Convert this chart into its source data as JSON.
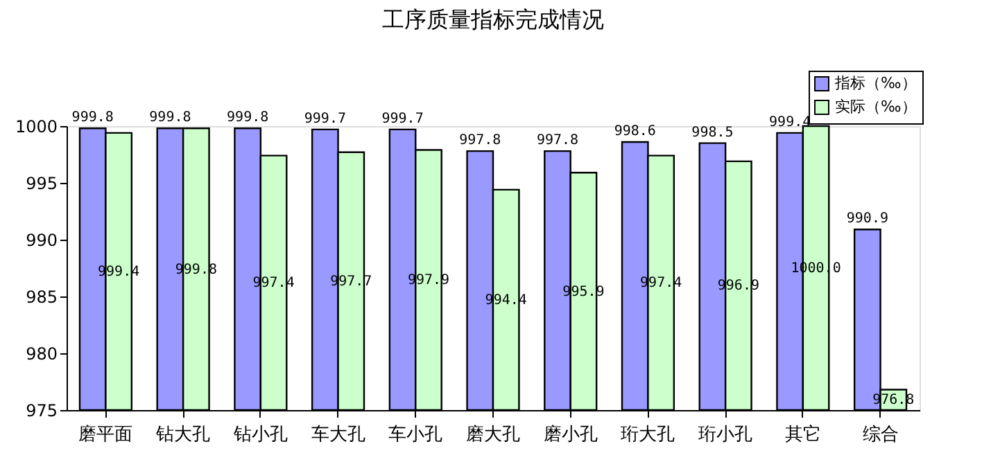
{
  "chart_data": {
    "type": "bar",
    "title": "工序质量指标完成情况",
    "categories": [
      "磨平面",
      "钻大孔",
      "钻小孔",
      "车大孔",
      "车小孔",
      "磨大孔",
      "磨小孔",
      "珩大孔",
      "珩小孔",
      "其它",
      "综合"
    ],
    "series": [
      {
        "name": "指标（‰）",
        "color": "#9999ff",
        "values": [
          999.8,
          999.8,
          999.8,
          999.7,
          999.7,
          997.8,
          997.8,
          998.6,
          998.5,
          999.4,
          990.9
        ],
        "value_labels": [
          "999.8",
          "999.8",
          "999.8",
          "999.7",
          "999.7",
          "997.8",
          "997.8",
          "998.6",
          "998.5",
          "999.4",
          "990.9"
        ]
      },
      {
        "name": "实际（‰）",
        "color": "#ccffcc",
        "values": [
          999.4,
          999.8,
          997.4,
          997.7,
          997.9,
          994.4,
          995.9,
          997.4,
          996.9,
          1000.0,
          976.8
        ],
        "value_labels": [
          "999.4",
          "999.8",
          "997.4",
          "997.7",
          "997.9",
          "994.4",
          "995.9",
          "997.4",
          "996.9",
          "1000.0",
          "976.8"
        ]
      }
    ],
    "ylim": [
      975,
      1000
    ],
    "yticks": [
      975,
      980,
      985,
      990,
      995,
      1000
    ],
    "grid": false,
    "legend": "top right"
  }
}
